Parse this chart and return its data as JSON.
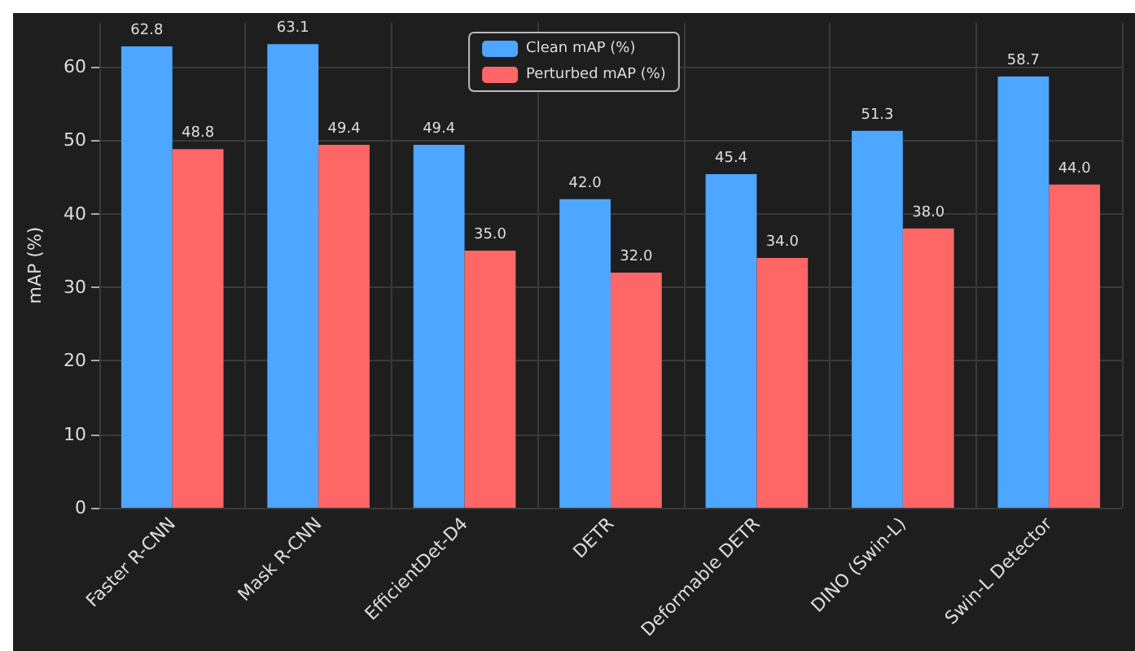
{
  "chart_data": {
    "type": "bar",
    "ylabel": "mAP (%)",
    "categories": [
      "Faster R-CNN",
      "Mask R-CNN",
      "EfficientDet-D4",
      "DETR",
      "Deformable DETR",
      "DINO (Swin-L)",
      "Swin-L Detector"
    ],
    "series": [
      {
        "name": "Clean mAP (%)",
        "color": "#4da6ff",
        "values": [
          62.8,
          63.1,
          49.4,
          42.0,
          45.4,
          51.3,
          58.7
        ],
        "value_labels": [
          "62.8",
          "63.1",
          "49.4",
          "42.0",
          "45.4",
          "51.3",
          "58.7"
        ]
      },
      {
        "name": "Perturbed mAP (%)",
        "color": "#ff6666",
        "values": [
          48.8,
          49.4,
          35.0,
          32.0,
          34.0,
          38.0,
          44.0
        ],
        "value_labels": [
          "48.8",
          "49.4",
          "35.0",
          "32.0",
          "34.0",
          "38.0",
          "44.0"
        ]
      }
    ],
    "ylim": [
      0,
      66
    ],
    "yticks": [
      0,
      10,
      20,
      30,
      40,
      50,
      60
    ],
    "grid": true,
    "legend": "top"
  }
}
